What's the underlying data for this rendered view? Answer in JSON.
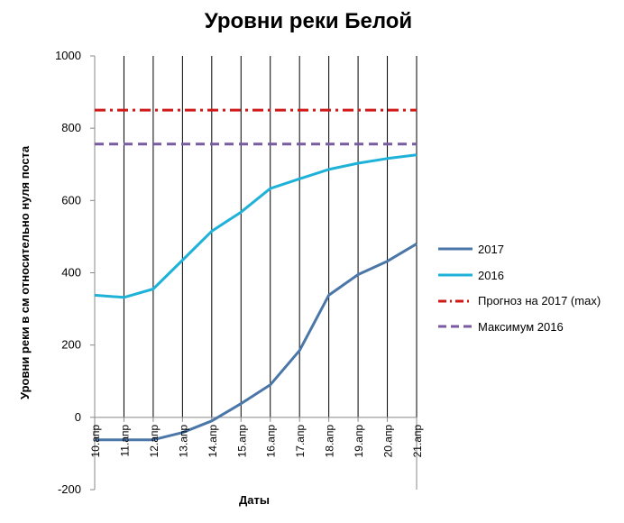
{
  "chart_data": {
    "type": "line",
    "title": "Уровни реки Белой",
    "xlabel": "Даты",
    "ylabel": "Уровни реки в см относительно нуля поста",
    "categories": [
      "10.апр",
      "11.апр",
      "12.апр",
      "13.апр",
      "14.апр",
      "15.апр",
      "16.апр",
      "17.апр",
      "18.апр",
      "19.апр",
      "20.апр",
      "21.апр"
    ],
    "ylim": [
      -200,
      1000
    ],
    "yticks": [
      -200,
      0,
      200,
      400,
      600,
      800,
      1000
    ],
    "vertical_gridlines": true,
    "legend_position": "right",
    "series": [
      {
        "name": "2017",
        "color": "#4a76a8",
        "style": "solid",
        "values": [
          -62,
          -62,
          -62,
          -42,
          -10,
          38,
          90,
          185,
          338,
          395,
          432,
          480
        ]
      },
      {
        "name": "2016",
        "color": "#1fb2d8",
        "style": "solid",
        "values": [
          338,
          332,
          355,
          435,
          515,
          568,
          633,
          660,
          686,
          703,
          716,
          726
        ]
      },
      {
        "name": "Прогноз на 2017 (max)",
        "color": "#d01818",
        "style": "dashdot",
        "values": [
          850,
          850,
          850,
          850,
          850,
          850,
          850,
          850,
          850,
          850,
          850,
          850
        ]
      },
      {
        "name": "Максимум  2016",
        "color": "#7a5aa0",
        "style": "dashed",
        "values": [
          756,
          756,
          756,
          756,
          756,
          756,
          756,
          756,
          756,
          756,
          756,
          756
        ]
      }
    ]
  }
}
